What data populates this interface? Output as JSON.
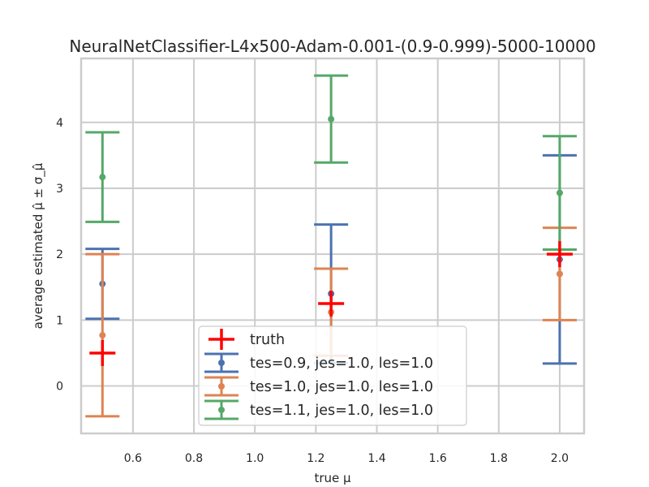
{
  "chart_data": {
    "type": "scatter",
    "title": "NeuralNetClassifier-L4x500-Adam-0.001-(0.9-0.999)-5000-10000",
    "xlabel": "true μ",
    "ylabel": "average estimated μ̂ ± σ_μ̂",
    "xlim": [
      0.43,
      2.08
    ],
    "ylim": [
      -0.72,
      4.97
    ],
    "xticks": [
      0.6,
      0.8,
      1.0,
      1.2,
      1.4,
      1.6,
      1.8,
      2.0
    ],
    "xtick_labels": [
      "0.6",
      "0.8",
      "1.0",
      "1.2",
      "1.4",
      "1.6",
      "1.8",
      "2.0"
    ],
    "yticks": [
      0,
      1,
      2,
      3,
      4
    ],
    "ytick_labels": [
      "0",
      "1",
      "2",
      "3",
      "4"
    ],
    "grid": true,
    "legend_position": "lower-center",
    "truth": {
      "name": "truth",
      "color": "#ff0000",
      "x": [
        0.5,
        1.25,
        2.0
      ],
      "y": [
        0.5,
        1.25,
        2.0
      ]
    },
    "series": [
      {
        "name": "tes=0.9, jes=1.0, les=1.0",
        "color": "#4c72b0",
        "x": [
          0.5,
          1.25,
          2.0
        ],
        "y": [
          1.55,
          1.4,
          1.92
        ],
        "yerr": [
          0.53,
          1.05,
          1.58
        ]
      },
      {
        "name": "tes=1.0, jes=1.0, les=1.0",
        "color": "#dd8452",
        "x": [
          0.5,
          1.25,
          2.0
        ],
        "y": [
          0.77,
          1.12,
          1.7
        ],
        "yerr": [
          1.23,
          0.66,
          0.7
        ]
      },
      {
        "name": "tes=1.1, jes=1.0, les=1.0",
        "color": "#55a868",
        "x": [
          0.5,
          1.25,
          2.0
        ],
        "y": [
          3.17,
          4.05,
          2.93
        ],
        "yerr": [
          0.68,
          0.66,
          0.86
        ]
      }
    ]
  }
}
